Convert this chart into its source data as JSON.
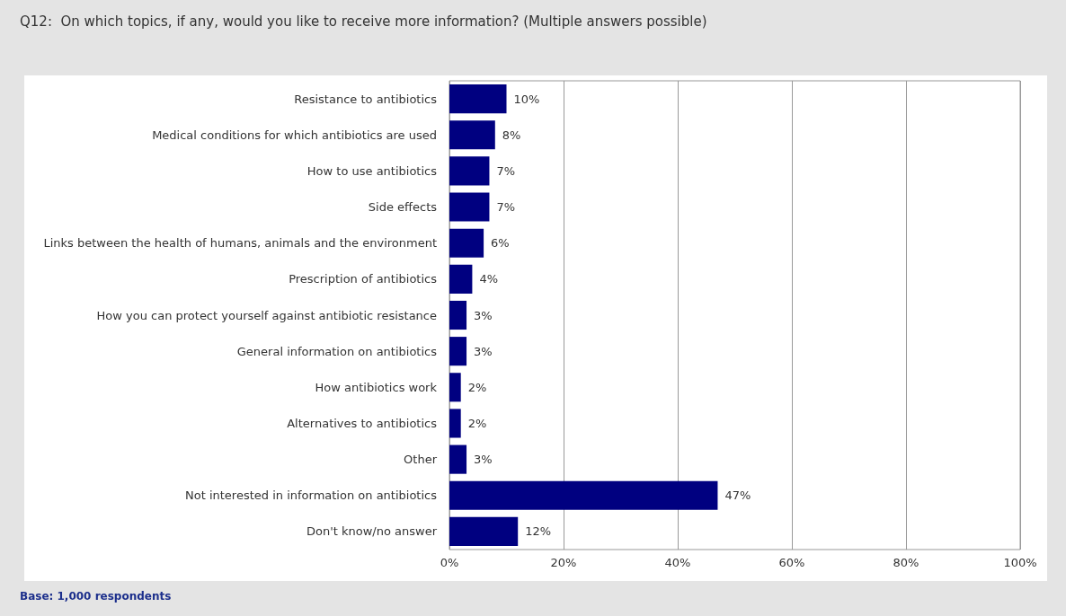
{
  "chart_data": {
    "type": "bar",
    "orientation": "horizontal",
    "title": "Q12:  On which topics, if any, would you like to receive more information? (Multiple answers possible)",
    "categories": [
      "Resistance to antibiotics",
      "Medical conditions for which antibiotics are used",
      "How to use antibiotics",
      "Side effects",
      "Links between the health of humans, animals and the environment",
      "Prescription of antibiotics",
      "How you can protect yourself against antibiotic resistance",
      "General information on antibiotics",
      "How antibiotics work",
      "Alternatives to antibiotics",
      "Other",
      "Not interested in information on antibiotics",
      "Don't know/no answer"
    ],
    "values": [
      10,
      8,
      7,
      7,
      6,
      4,
      3,
      3,
      2,
      2,
      3,
      47,
      12
    ],
    "value_labels": [
      "10%",
      "8%",
      "7%",
      "7%",
      "6%",
      "4%",
      "3%",
      "3%",
      "2%",
      "2%",
      "3%",
      "47%",
      "12%"
    ],
    "color": "#000080",
    "xlim": [
      0,
      100
    ],
    "xticks": [
      {
        "value": 0,
        "label": "0%"
      },
      {
        "value": 20,
        "label": "20%"
      },
      {
        "value": 40,
        "label": "40%"
      },
      {
        "value": 60,
        "label": "60%"
      },
      {
        "value": 80,
        "label": "80%"
      },
      {
        "value": 100,
        "label": "100%"
      }
    ],
    "grid": "x",
    "annotations": [
      "Base: 1,000 respondents"
    ]
  }
}
